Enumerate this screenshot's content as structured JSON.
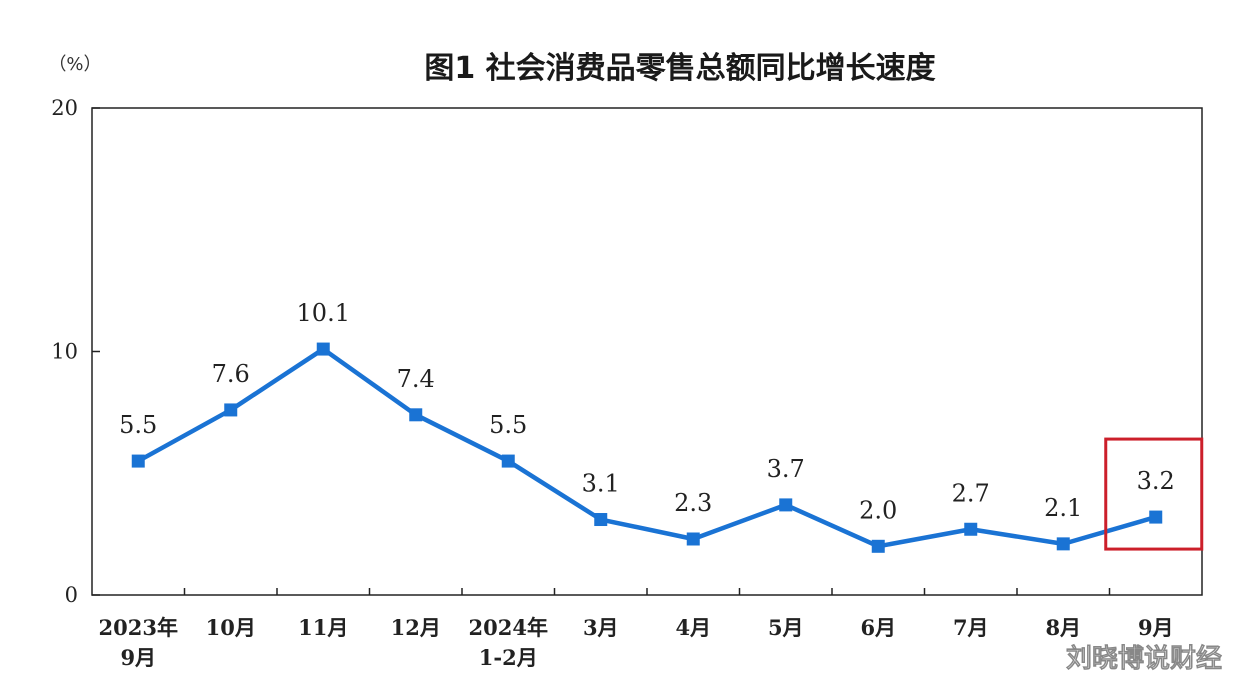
{
  "chart_data": {
    "type": "line",
    "title": "图1  社会消费品零售总额同比增长速度",
    "unit_label": "（%）",
    "ylim": [
      0,
      20
    ],
    "yticks": [
      "0",
      "10",
      "20"
    ],
    "categories": [
      [
        "2023年",
        "9月"
      ],
      [
        "10月"
      ],
      [
        "11月"
      ],
      [
        "12月"
      ],
      [
        "2024年",
        "1-2月"
      ],
      [
        "3月"
      ],
      [
        "4月"
      ],
      [
        "5月"
      ],
      [
        "6月"
      ],
      [
        "7月"
      ],
      [
        "8月"
      ],
      [
        "9月"
      ]
    ],
    "series": [
      {
        "values": [
          5.5,
          7.6,
          10.1,
          7.4,
          5.5,
          3.1,
          2.3,
          3.7,
          2.0,
          2.7,
          2.1,
          3.2
        ],
        "labels": [
          "5.5",
          "7.6",
          "10.1",
          "7.4",
          "5.5",
          "3.1",
          "2.3",
          "3.7",
          "2.0",
          "2.7",
          "2.1",
          "3.2"
        ],
        "color": "#1a73d4"
      }
    ],
    "grid": false,
    "highlight": {
      "index": 11,
      "color": "#cc1f2a"
    }
  },
  "watermark": "刘晓博说财经"
}
